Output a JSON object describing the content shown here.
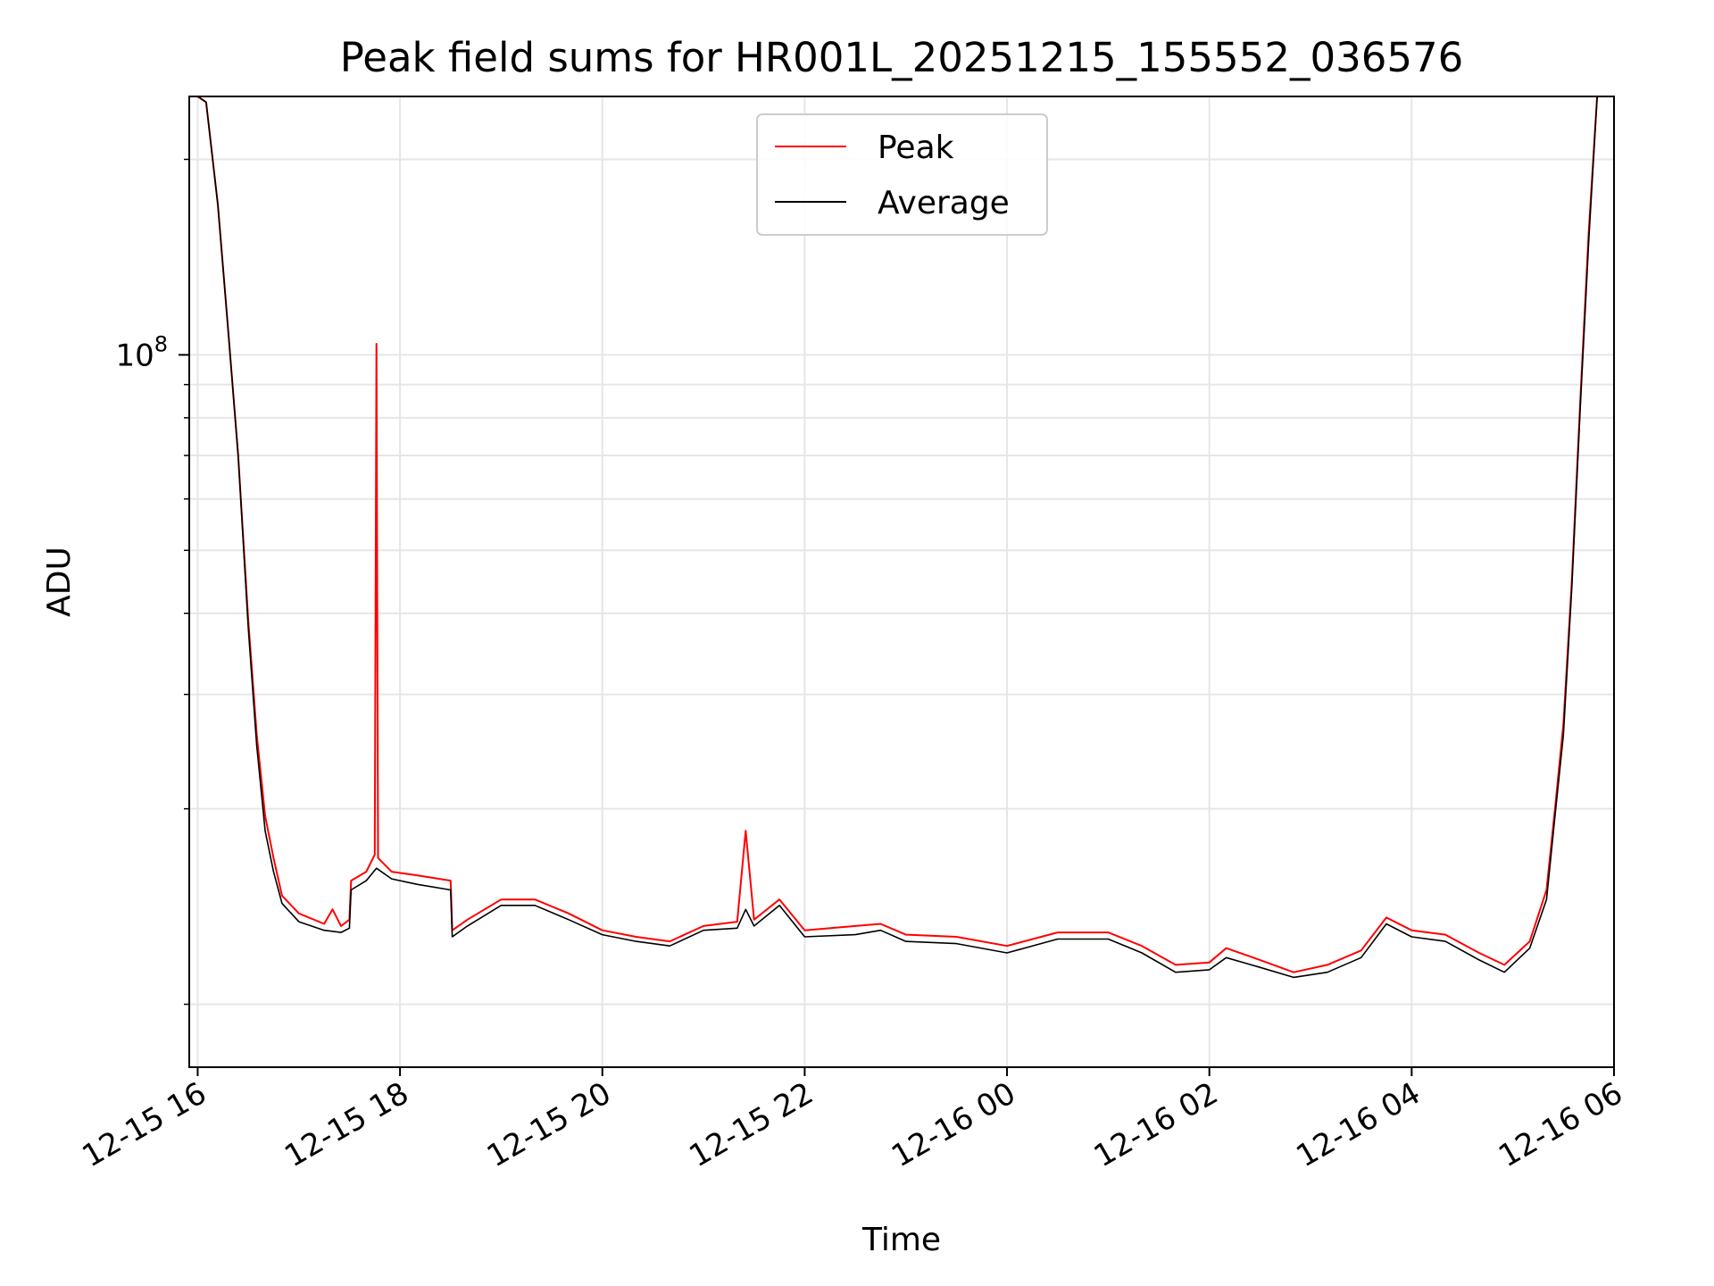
{
  "chart_data": {
    "type": "line",
    "title": "Peak field sums for HR001L_20251215_155552_036576",
    "xlabel": "Time",
    "ylabel": "ADU",
    "y_scale": "log",
    "x_axis_type": "datetime",
    "xlim": [
      "2025-12-15T15:55",
      "2025-12-16T06:00"
    ],
    "ylim": [
      8000000.0,
      250000000.0
    ],
    "x_ticks": [
      {
        "value": "2025-12-15T16:00",
        "label": "12-15 16"
      },
      {
        "value": "2025-12-15T18:00",
        "label": "12-15 18"
      },
      {
        "value": "2025-12-15T20:00",
        "label": "12-15 20"
      },
      {
        "value": "2025-12-15T22:00",
        "label": "12-15 22"
      },
      {
        "value": "2025-12-16T00:00",
        "label": "12-16 00"
      },
      {
        "value": "2025-12-16T02:00",
        "label": "12-16 02"
      },
      {
        "value": "2025-12-16T04:00",
        "label": "12-16 04"
      },
      {
        "value": "2025-12-16T06:00",
        "label": "12-16 06"
      }
    ],
    "y_major_ticks": [
      {
        "value": 100000000.0,
        "base": "10",
        "exp": "8"
      }
    ],
    "y_minor_ticks": [
      10000000.0,
      20000000.0,
      30000000.0,
      40000000.0,
      50000000.0,
      60000000.0,
      70000000.0,
      80000000.0,
      90000000.0,
      200000000.0
    ],
    "grid": true,
    "legend_position": "top-center",
    "series": [
      {
        "name": "Peak",
        "color": "#ff0000",
        "points": [
          [
            "2025-12-15T16:00",
            250000000.0
          ],
          [
            "2025-12-15T16:05",
            245000000.0
          ],
          [
            "2025-12-15T16:12",
            170000000.0
          ],
          [
            "2025-12-15T16:18",
            110000000.0
          ],
          [
            "2025-12-15T16:24",
            70000000.0
          ],
          [
            "2025-12-15T16:30",
            39000000.0
          ],
          [
            "2025-12-15T16:35",
            26000000.0
          ],
          [
            "2025-12-15T16:40",
            19500000.0
          ],
          [
            "2025-12-15T16:45",
            16800000.0
          ],
          [
            "2025-12-15T16:50",
            14700000.0
          ],
          [
            "2025-12-15T17:00",
            13800000.0
          ],
          [
            "2025-12-15T17:15",
            13300000.0
          ],
          [
            "2025-12-15T17:20",
            14000000.0
          ],
          [
            "2025-12-15T17:25",
            13200000.0
          ],
          [
            "2025-12-15T17:30",
            13500000.0
          ],
          [
            "2025-12-15T17:31",
            15500000.0
          ],
          [
            "2025-12-15T17:40",
            16000000.0
          ],
          [
            "2025-12-15T17:45",
            17000000.0
          ],
          [
            "2025-12-15T17:46",
            104000000.0
          ],
          [
            "2025-12-15T17:47",
            16800000.0
          ],
          [
            "2025-12-15T17:55",
            16000000.0
          ],
          [
            "2025-12-15T18:10",
            15800000.0
          ],
          [
            "2025-12-15T18:30",
            15500000.0
          ],
          [
            "2025-12-15T18:31",
            13000000.0
          ],
          [
            "2025-12-15T18:40",
            13500000.0
          ],
          [
            "2025-12-15T19:00",
            14500000.0
          ],
          [
            "2025-12-15T19:20",
            14500000.0
          ],
          [
            "2025-12-15T19:40",
            13800000.0
          ],
          [
            "2025-12-15T20:00",
            13000000.0
          ],
          [
            "2025-12-15T20:20",
            12700000.0
          ],
          [
            "2025-12-15T20:40",
            12500000.0
          ],
          [
            "2025-12-15T21:00",
            13200000.0
          ],
          [
            "2025-12-15T21:20",
            13400000.0
          ],
          [
            "2025-12-15T21:25",
            18500000.0
          ],
          [
            "2025-12-15T21:30",
            13500000.0
          ],
          [
            "2025-12-15T21:45",
            14500000.0
          ],
          [
            "2025-12-15T22:00",
            13000000.0
          ],
          [
            "2025-12-15T22:30",
            13200000.0
          ],
          [
            "2025-12-15T22:45",
            13300000.0
          ],
          [
            "2025-12-15T23:00",
            12800000.0
          ],
          [
            "2025-12-15T23:30",
            12700000.0
          ],
          [
            "2025-12-16T00:00",
            12300000.0
          ],
          [
            "2025-12-16T00:30",
            12900000.0
          ],
          [
            "2025-12-16T01:00",
            12900000.0
          ],
          [
            "2025-12-16T01:20",
            12300000.0
          ],
          [
            "2025-12-16T01:40",
            11500000.0
          ],
          [
            "2025-12-16T02:00",
            11600000.0
          ],
          [
            "2025-12-16T02:10",
            12200000.0
          ],
          [
            "2025-12-16T02:30",
            11700000.0
          ],
          [
            "2025-12-16T02:50",
            11200000.0
          ],
          [
            "2025-12-16T03:10",
            11500000.0
          ],
          [
            "2025-12-16T03:30",
            12100000.0
          ],
          [
            "2025-12-16T03:45",
            13600000.0
          ],
          [
            "2025-12-16T04:00",
            13000000.0
          ],
          [
            "2025-12-16T04:20",
            12800000.0
          ],
          [
            "2025-12-16T04:40",
            12000000.0
          ],
          [
            "2025-12-16T04:55",
            11500000.0
          ],
          [
            "2025-12-16T05:10",
            12500000.0
          ],
          [
            "2025-12-16T05:20",
            15000000.0
          ],
          [
            "2025-12-16T05:25",
            20000000.0
          ],
          [
            "2025-12-16T05:30",
            27000000.0
          ],
          [
            "2025-12-16T05:35",
            45000000.0
          ],
          [
            "2025-12-16T05:40",
            85000000.0
          ],
          [
            "2025-12-16T05:45",
            155000000.0
          ],
          [
            "2025-12-16T05:50",
            250000000.0
          ]
        ]
      },
      {
        "name": "Average",
        "color": "#000000",
        "points": [
          [
            "2025-12-15T16:00",
            250000000.0
          ],
          [
            "2025-12-15T16:05",
            245000000.0
          ],
          [
            "2025-12-15T16:12",
            170000000.0
          ],
          [
            "2025-12-15T16:18",
            110000000.0
          ],
          [
            "2025-12-15T16:24",
            70000000.0
          ],
          [
            "2025-12-15T16:30",
            38000000.0
          ],
          [
            "2025-12-15T16:35",
            25000000.0
          ],
          [
            "2025-12-15T16:40",
            18500000.0
          ],
          [
            "2025-12-15T16:45",
            16000000.0
          ],
          [
            "2025-12-15T16:50",
            14300000.0
          ],
          [
            "2025-12-15T17:00",
            13400000.0
          ],
          [
            "2025-12-15T17:15",
            13000000.0
          ],
          [
            "2025-12-15T17:25",
            12900000.0
          ],
          [
            "2025-12-15T17:30",
            13100000.0
          ],
          [
            "2025-12-15T17:31",
            15000000.0
          ],
          [
            "2025-12-15T17:40",
            15500000.0
          ],
          [
            "2025-12-15T17:46",
            16200000.0
          ],
          [
            "2025-12-15T17:55",
            15600000.0
          ],
          [
            "2025-12-15T18:10",
            15300000.0
          ],
          [
            "2025-12-15T18:30",
            15000000.0
          ],
          [
            "2025-12-15T18:31",
            12700000.0
          ],
          [
            "2025-12-15T18:40",
            13200000.0
          ],
          [
            "2025-12-15T19:00",
            14200000.0
          ],
          [
            "2025-12-15T19:20",
            14200000.0
          ],
          [
            "2025-12-15T19:40",
            13500000.0
          ],
          [
            "2025-12-15T20:00",
            12800000.0
          ],
          [
            "2025-12-15T20:20",
            12500000.0
          ],
          [
            "2025-12-15T20:40",
            12300000.0
          ],
          [
            "2025-12-15T21:00",
            13000000.0
          ],
          [
            "2025-12-15T21:20",
            13100000.0
          ],
          [
            "2025-12-15T21:25",
            14000000.0
          ],
          [
            "2025-12-15T21:30",
            13200000.0
          ],
          [
            "2025-12-15T21:45",
            14200000.0
          ],
          [
            "2025-12-15T22:00",
            12700000.0
          ],
          [
            "2025-12-15T22:30",
            12800000.0
          ],
          [
            "2025-12-15T22:45",
            13000000.0
          ],
          [
            "2025-12-15T23:00",
            12500000.0
          ],
          [
            "2025-12-15T23:30",
            12400000.0
          ],
          [
            "2025-12-16T00:00",
            12000000.0
          ],
          [
            "2025-12-16T00:30",
            12600000.0
          ],
          [
            "2025-12-16T01:00",
            12600000.0
          ],
          [
            "2025-12-16T01:20",
            12000000.0
          ],
          [
            "2025-12-16T01:40",
            11200000.0
          ],
          [
            "2025-12-16T02:00",
            11300000.0
          ],
          [
            "2025-12-16T02:10",
            11800000.0
          ],
          [
            "2025-12-16T02:30",
            11400000.0
          ],
          [
            "2025-12-16T02:50",
            11000000.0
          ],
          [
            "2025-12-16T03:10",
            11200000.0
          ],
          [
            "2025-12-16T03:30",
            11800000.0
          ],
          [
            "2025-12-16T03:45",
            13300000.0
          ],
          [
            "2025-12-16T04:00",
            12700000.0
          ],
          [
            "2025-12-16T04:20",
            12500000.0
          ],
          [
            "2025-12-16T04:40",
            11700000.0
          ],
          [
            "2025-12-16T04:55",
            11200000.0
          ],
          [
            "2025-12-16T05:10",
            12200000.0
          ],
          [
            "2025-12-16T05:20",
            14500000.0
          ],
          [
            "2025-12-16T05:25",
            19500000.0
          ],
          [
            "2025-12-16T05:30",
            26000000.0
          ],
          [
            "2025-12-16T05:35",
            44000000.0
          ],
          [
            "2025-12-16T05:40",
            83000000.0
          ],
          [
            "2025-12-16T05:45",
            150000000.0
          ],
          [
            "2025-12-16T05:50",
            250000000.0
          ]
        ]
      }
    ]
  }
}
